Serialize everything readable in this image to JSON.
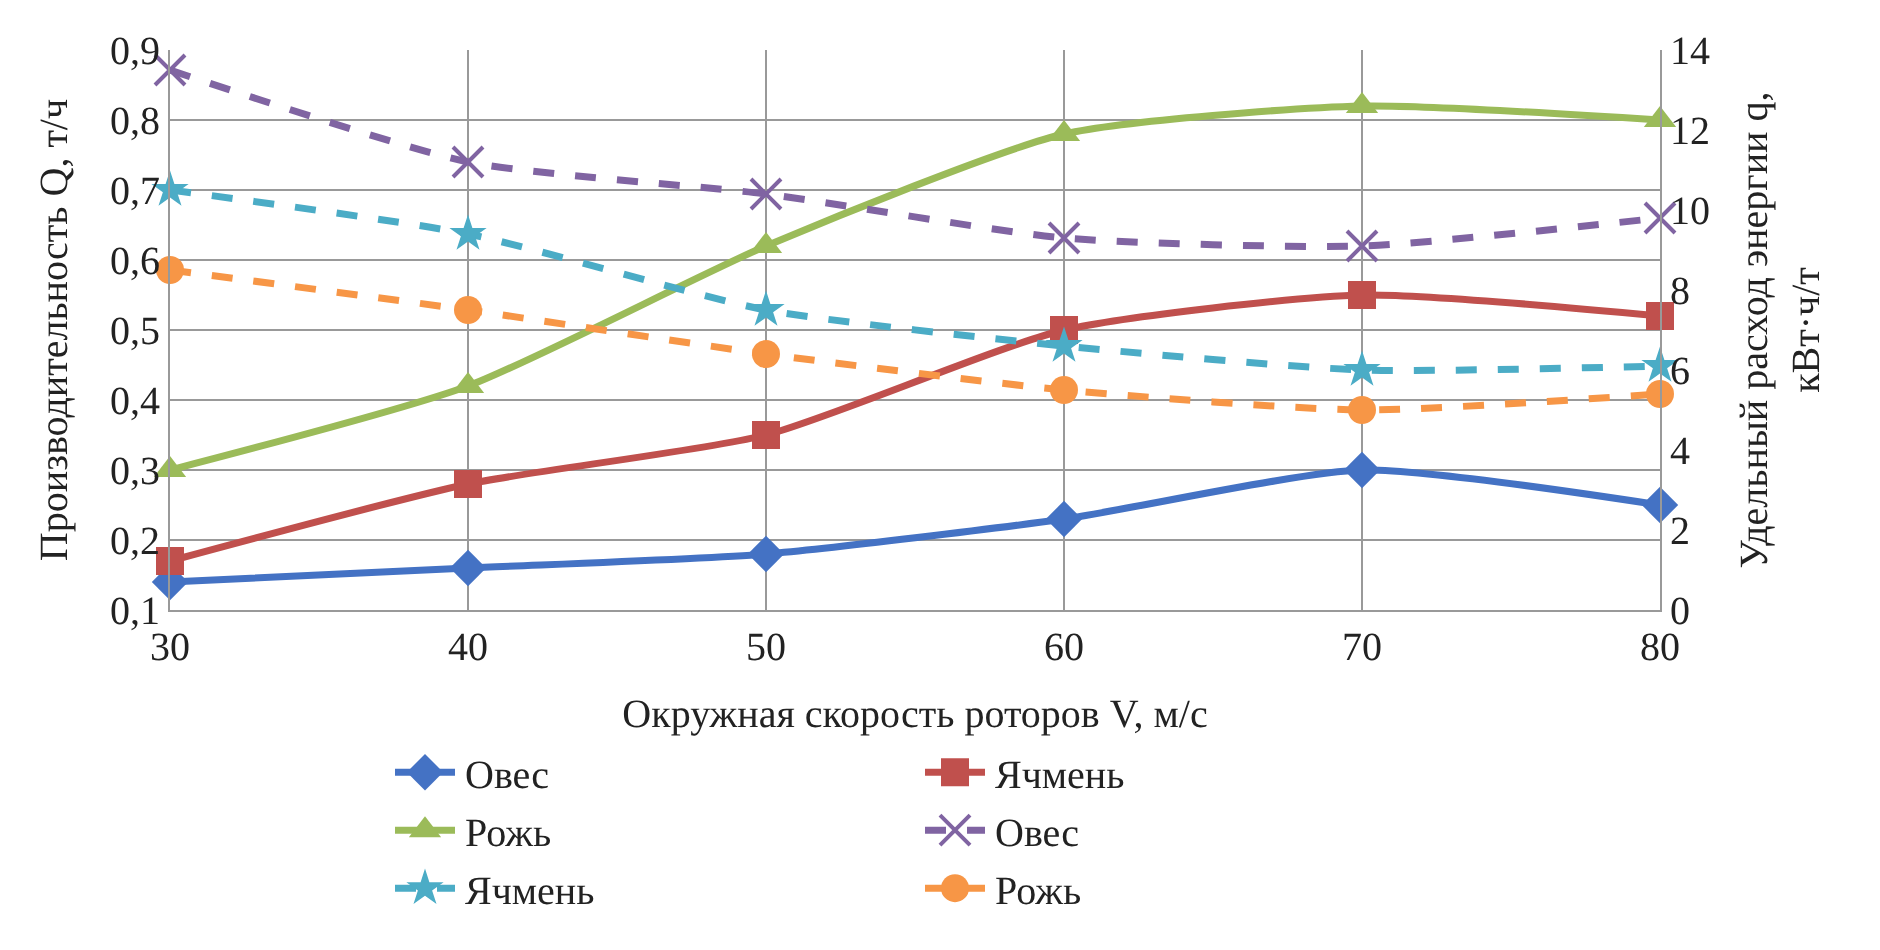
{
  "chart_data": {
    "type": "line",
    "xlabel": "Окружная скорость роторов V, м/с",
    "ylabel": "Производительность Q, т/ч",
    "y2label": "Удельный расход энергии q,\nкВт·ч/т",
    "x": [
      30,
      40,
      50,
      60,
      70,
      80
    ],
    "xlim": [
      30,
      80
    ],
    "xticks": [
      30,
      40,
      50,
      60,
      70,
      80
    ],
    "ylim": [
      0.1,
      0.9
    ],
    "yticks": [
      {
        "value": 0.1,
        "label": "0,1"
      },
      {
        "value": 0.2,
        "label": "0,2"
      },
      {
        "value": 0.3,
        "label": "0,3"
      },
      {
        "value": 0.4,
        "label": "0,4"
      },
      {
        "value": 0.5,
        "label": "0,5"
      },
      {
        "value": 0.6,
        "label": "0,6"
      },
      {
        "value": 0.7,
        "label": "0,7"
      },
      {
        "value": 0.8,
        "label": "0,8"
      },
      {
        "value": 0.9,
        "label": "0,9"
      }
    ],
    "y2lim": [
      0,
      14
    ],
    "y2ticks": [
      0,
      2,
      4,
      6,
      8,
      10,
      12,
      14
    ],
    "grid": true,
    "legend": "bottom",
    "series": [
      {
        "name": "Овес",
        "color": "#4472c4",
        "marker": "diamond",
        "line_style": "solid",
        "values": [
          0.14,
          0.16,
          0.18,
          0.23,
          0.3,
          0.25
        ]
      },
      {
        "name": "Ячмень",
        "color": "#c0504d",
        "marker": "square",
        "line_style": "solid",
        "values": [
          0.17,
          0.28,
          0.35,
          0.5,
          0.55,
          0.52
        ]
      },
      {
        "name": "Рожь",
        "color": "#9bbb59",
        "marker": "triangle",
        "line_style": "solid",
        "values": [
          0.3,
          0.42,
          0.62,
          0.78,
          0.82,
          0.8
        ]
      },
      {
        "name": "Овес",
        "color": "#8064a2",
        "marker": "cross",
        "line_style": "dashed",
        "axis": "y2",
        "values": [
          13.5,
          11.2,
          10.4,
          9.3,
          9.1,
          9.8
        ]
      },
      {
        "name": "Ячмень",
        "color": "#4bacc6",
        "marker": "star",
        "line_style": "dashed",
        "axis": "y2",
        "values": [
          10.5,
          9.4,
          7.5,
          6.6,
          6.0,
          6.1
        ]
      },
      {
        "name": "Рожь",
        "color": "#f79646",
        "marker": "circle",
        "line_style": "dashed",
        "axis": "y2",
        "values": [
          8.5,
          7.5,
          6.4,
          5.5,
          5.0,
          5.4
        ]
      }
    ]
  }
}
